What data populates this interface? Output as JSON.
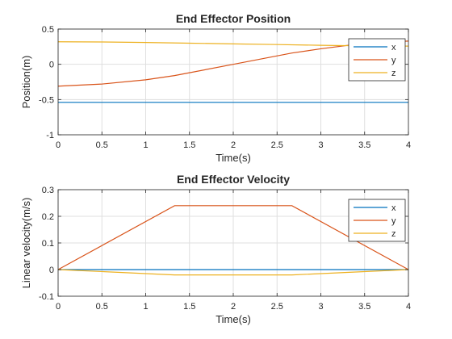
{
  "colors": {
    "x": "#0072BD",
    "y": "#D95319",
    "z": "#EDB120",
    "grid": "#dfdfdf",
    "axis": "#262626"
  },
  "chart_data": [
    {
      "type": "line",
      "title": "End Effector Position",
      "xlabel": "Time(s)",
      "ylabel": "Position(m)",
      "xlim": [
        0,
        4
      ],
      "ylim": [
        -1,
        0.5
      ],
      "xticks": [
        0,
        0.5,
        1,
        1.5,
        2,
        2.5,
        3,
        3.5,
        4
      ],
      "yticks": [
        -1,
        -0.5,
        0,
        0.5
      ],
      "xtick_labels": [
        "0",
        "0.5",
        "1",
        "1.5",
        "2",
        "2.5",
        "3",
        "3.5",
        "4"
      ],
      "ytick_labels": [
        "-1",
        "-0.5",
        "0",
        "0.5"
      ],
      "grid": true,
      "legend": "top-right",
      "series": [
        {
          "name": "x",
          "x": [
            0,
            1,
            2,
            3,
            4
          ],
          "y": [
            -0.54,
            -0.54,
            -0.54,
            -0.54,
            -0.54
          ]
        },
        {
          "name": "y",
          "x": [
            0,
            0.5,
            1,
            1.33,
            2,
            2.67,
            3,
            3.5,
            4
          ],
          "y": [
            -0.31,
            -0.28,
            -0.22,
            -0.16,
            0.0,
            0.16,
            0.22,
            0.3,
            0.33
          ]
        },
        {
          "name": "z",
          "x": [
            0,
            0.5,
            1,
            1.5,
            2,
            2.5,
            3,
            3.5,
            4
          ],
          "y": [
            0.32,
            0.317,
            0.31,
            0.3,
            0.29,
            0.28,
            0.27,
            0.262,
            0.258
          ]
        }
      ]
    },
    {
      "type": "line",
      "title": "End Effector Velocity",
      "xlabel": "Time(s)",
      "ylabel": "Linear velocity(m/s)",
      "xlim": [
        0,
        4
      ],
      "ylim": [
        -0.1,
        0.3
      ],
      "xticks": [
        0,
        0.5,
        1,
        1.5,
        2,
        2.5,
        3,
        3.5,
        4
      ],
      "yticks": [
        -0.1,
        0,
        0.1,
        0.2,
        0.3
      ],
      "xtick_labels": [
        "0",
        "0.5",
        "1",
        "1.5",
        "2",
        "2.5",
        "3",
        "3.5",
        "4"
      ],
      "ytick_labels": [
        "-0.1",
        "0",
        "0.1",
        "0.2",
        "0.3"
      ],
      "grid": true,
      "legend": "top-right",
      "series": [
        {
          "name": "x",
          "x": [
            0,
            1.33,
            2.67,
            4
          ],
          "y": [
            0,
            0,
            0,
            0
          ]
        },
        {
          "name": "y",
          "x": [
            0,
            1.33,
            2.67,
            4
          ],
          "y": [
            0,
            0.24,
            0.24,
            0
          ]
        },
        {
          "name": "z",
          "x": [
            0,
            1.33,
            2.67,
            4
          ],
          "y": [
            0,
            -0.02,
            -0.02,
            0
          ]
        }
      ]
    }
  ]
}
